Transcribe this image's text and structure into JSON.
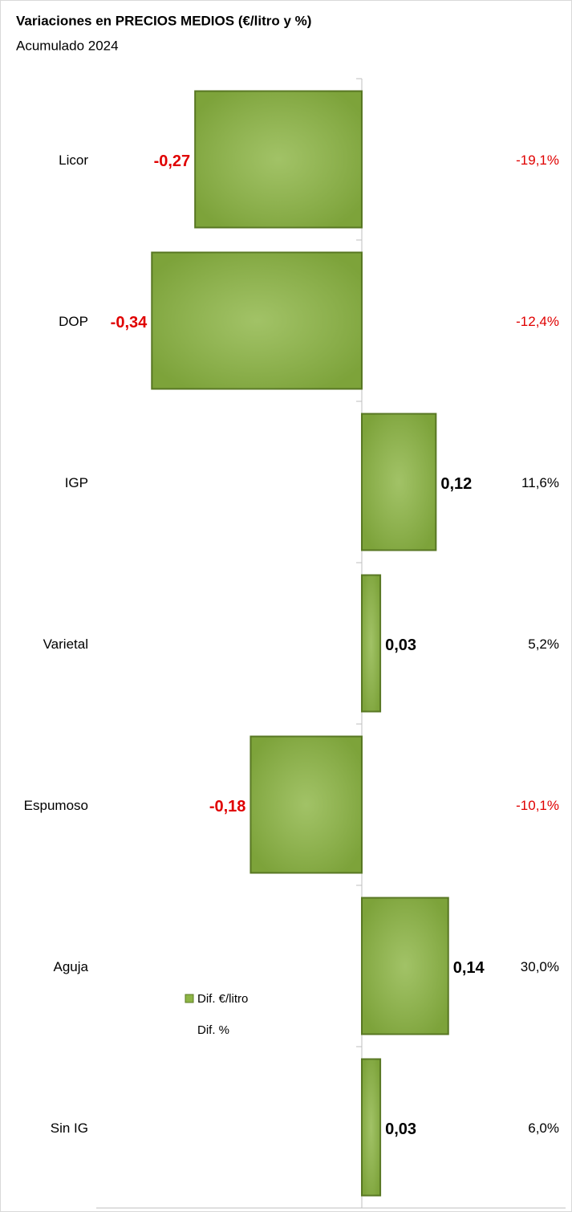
{
  "chart_data": {
    "type": "bar",
    "orientation": "horizontal",
    "title": "Variaciones en PRECIOS MEDIOS (€/litro y %)",
    "subtitle": "Acumulado 2024",
    "categories": [
      "Licor",
      "DOP",
      "IGP",
      "Varietal",
      "Espumoso",
      "Aguja",
      "Sin IG"
    ],
    "series": [
      {
        "name": "Dif. €/litro",
        "color": "#8db545",
        "values": [
          -0.27,
          -0.34,
          0.12,
          0.03,
          -0.18,
          0.14,
          0.03
        ],
        "value_labels": [
          "-0,27",
          "-0,34",
          "0,12",
          "0,03",
          "-0,18",
          "0,14",
          "0,03"
        ]
      },
      {
        "name": "Dif. %",
        "values": [
          -19.1,
          -12.4,
          11.6,
          5.2,
          -10.1,
          30.0,
          6.0
        ],
        "value_labels": [
          "-19,1%",
          "-12,4%",
          "11,6%",
          "5,2%",
          "-10,1%",
          "30,0%",
          "6,0%"
        ]
      }
    ],
    "xlim": [
      -0.43,
      0.33
    ],
    "negative_label_color": "#e00000"
  }
}
